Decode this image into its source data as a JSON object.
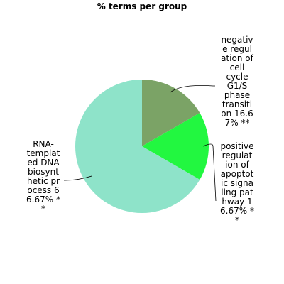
{
  "chart_data": {
    "type": "pie",
    "title": "% terms per group",
    "slices": [
      {
        "name": "negative regulation of cell cycle G1/S phase transition",
        "percent": 16.67,
        "color": "#7ba366",
        "label_lines": [
          "negativ",
          "e regul",
          "ation of",
          "cell",
          "cycle",
          "G1/S",
          "phase",
          "transiti",
          "on 16.6",
          "7% **"
        ]
      },
      {
        "name": "positive regulation of apoptotic signaling pathway",
        "percent": 16.67,
        "color": "#22f740",
        "label_lines": [
          "positive",
          "regulat",
          "ion of",
          "apoptot",
          "ic signa",
          "ling pat",
          "hway 1",
          "6.67% *",
          "*"
        ]
      },
      {
        "name": "RNA-templated DNA biosynthetic process",
        "percent": 66.67,
        "color": "#8ee3c9",
        "label_lines": [
          "RNA-",
          "templat",
          "ed DNA",
          "biosynt",
          "hetic pr",
          "ocess 6",
          "6.67% *",
          "*"
        ]
      }
    ]
  }
}
